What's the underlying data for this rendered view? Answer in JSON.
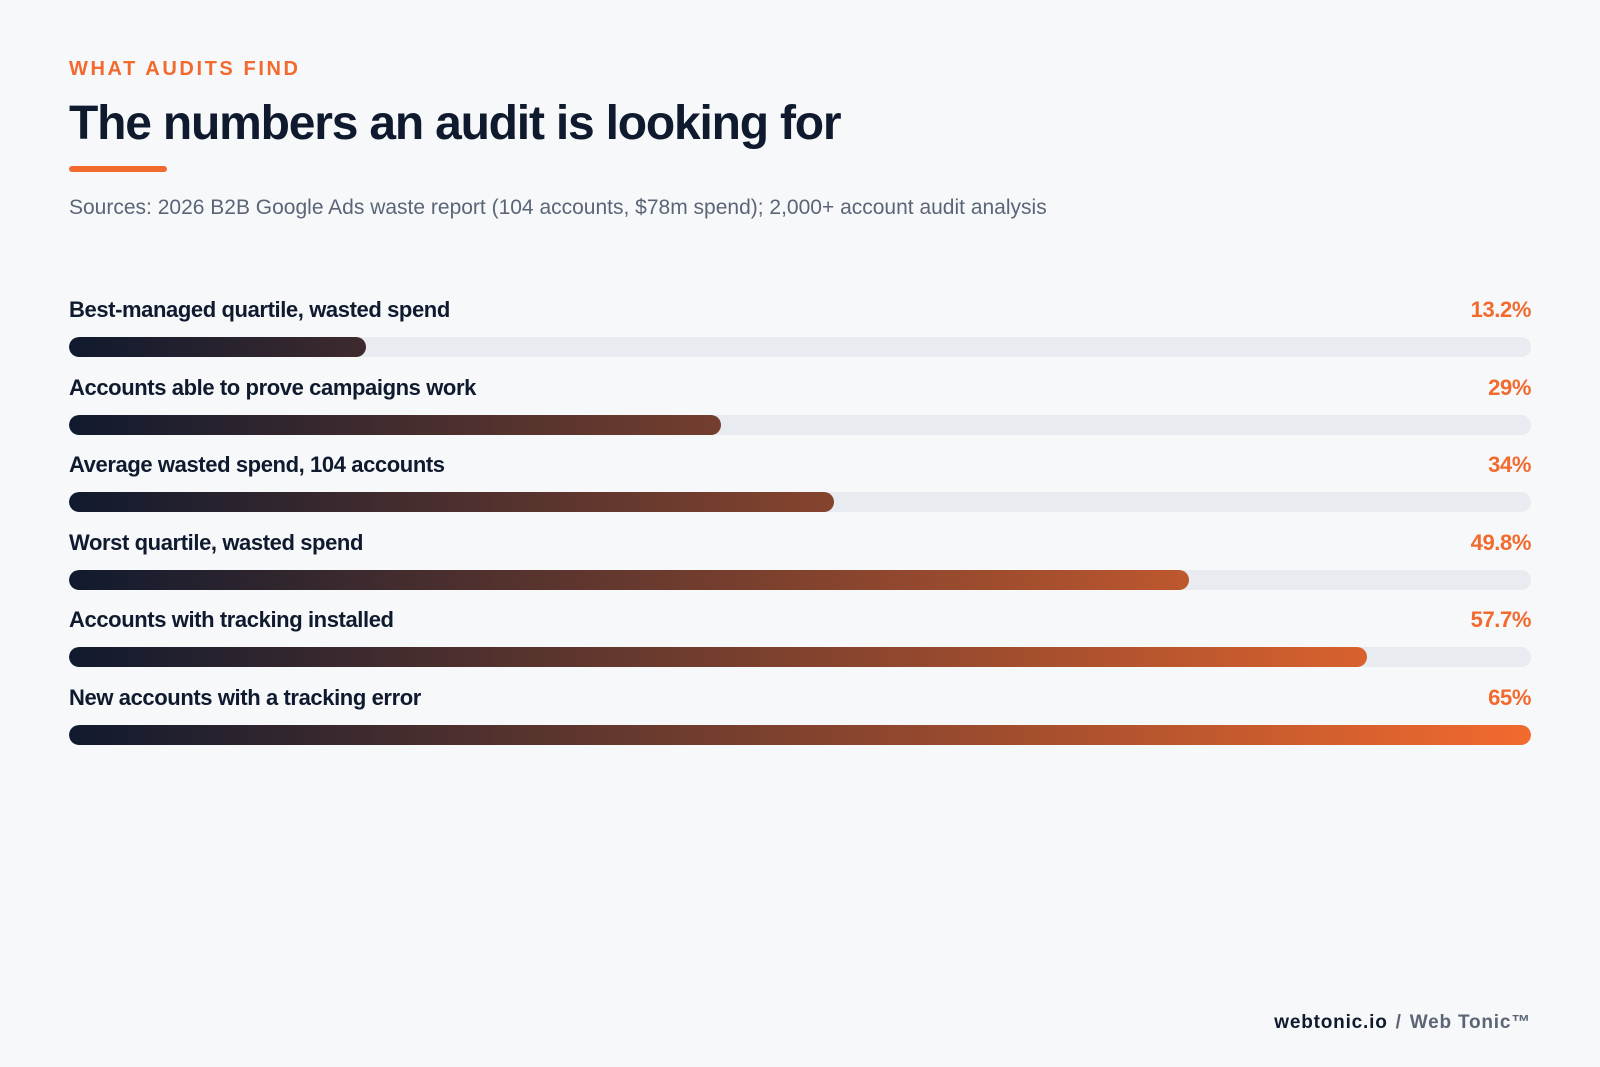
{
  "header": {
    "eyebrow": "WHAT AUDITS FIND",
    "title": "The numbers an audit is looking for",
    "sources": "Sources: 2026 B2B Google Ads waste report (104 accounts, $78m spend); 2,000+ account audit analysis"
  },
  "chart_data": {
    "type": "bar",
    "orientation": "horizontal",
    "categories": [
      "Best-managed quartile, wasted spend",
      "Accounts able to prove campaigns work",
      "Average wasted spend, 104 accounts",
      "Worst quartile, wasted spend",
      "Accounts with tracking installed",
      "New accounts with a tracking error"
    ],
    "values": [
      13.2,
      29,
      34,
      49.8,
      57.7,
      65
    ],
    "value_labels": [
      "13.2%",
      "29%",
      "34%",
      "49.8%",
      "57.7%",
      "65%"
    ],
    "xlim": [
      0,
      65
    ],
    "grid": false,
    "title": "",
    "xlabel": "",
    "ylabel": ""
  },
  "colors": {
    "accent": "#f26a2e",
    "dark": "#101a2e",
    "track": "#e8ebef"
  },
  "footer": {
    "domain": "webtonic.io",
    "separator": "/",
    "brand": "Web Tonic™"
  }
}
